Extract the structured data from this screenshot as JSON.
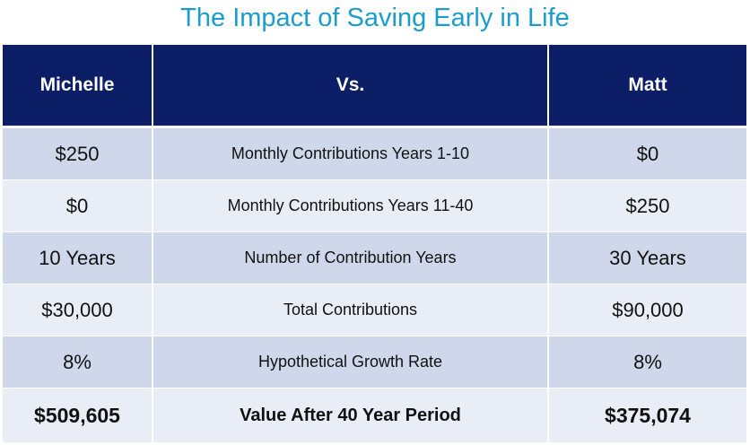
{
  "title": "The Impact of Saving Early in Life",
  "header": {
    "left": "Michelle",
    "middle": "Vs.",
    "right": "Matt"
  },
  "rows": [
    {
      "michelle": "$250",
      "label": "Monthly Contributions Years 1-10",
      "matt": "$0"
    },
    {
      "michelle": "$0",
      "label": "Monthly Contributions Years 11-40",
      "matt": "$250"
    },
    {
      "michelle": "10 Years",
      "label": "Number of Contribution Years",
      "matt": "30 Years"
    },
    {
      "michelle": "$30,000",
      "label": "Total Contributions",
      "matt": "$90,000"
    },
    {
      "michelle": "8%",
      "label": "Hypothetical Growth Rate",
      "matt": "8%"
    },
    {
      "michelle": "$509,605",
      "label": "Value After 40 Year Period",
      "matt": "$375,074"
    }
  ],
  "colors": {
    "title": "#1c9ccc",
    "header_bg": "#0c1f66",
    "row_dark": "#cfd8ea",
    "row_light": "#e9edf6"
  }
}
